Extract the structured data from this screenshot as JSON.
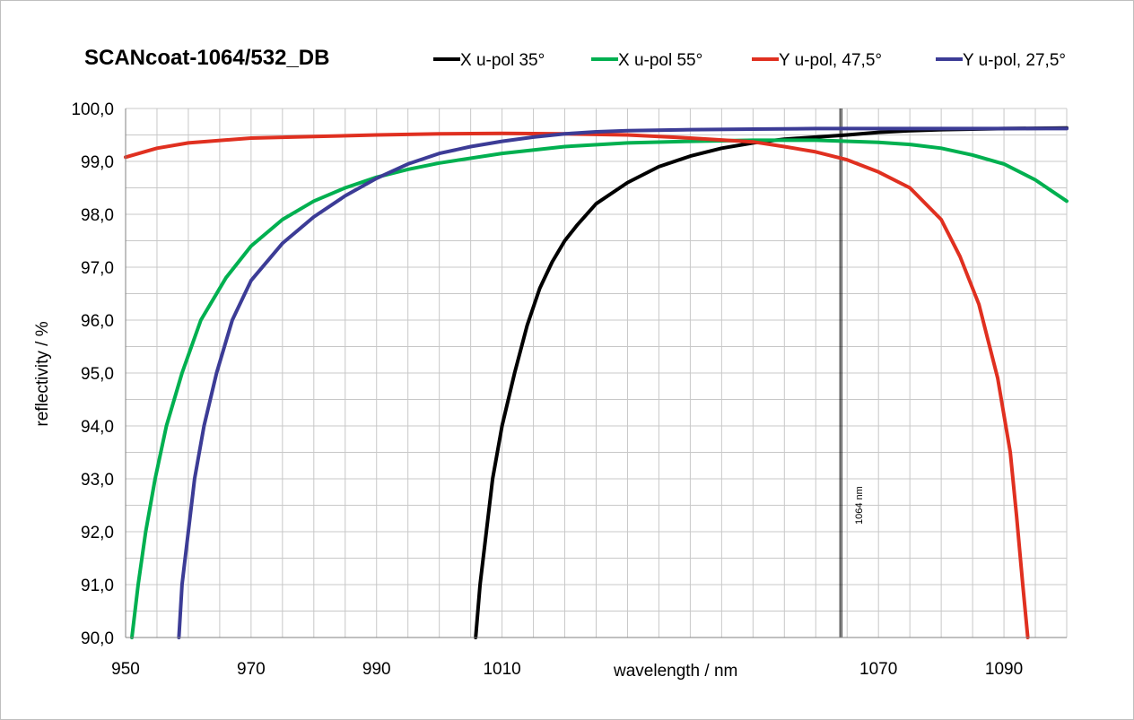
{
  "chart_data": {
    "type": "line",
    "title": "SCANcoat-1064/532_DB",
    "xlabel": "wavelength / nm",
    "ylabel": "reflectivity / %",
    "xlim": [
      950,
      1100
    ],
    "ylim": [
      90,
      100
    ],
    "x_ticks": [
      950,
      970,
      990,
      1010,
      1030,
      1050,
      1070,
      1090
    ],
    "x_tick_labels": [
      "950",
      "970",
      "990",
      "1010",
      "",
      "",
      "1070",
      "1090"
    ],
    "y_ticks": [
      90,
      91,
      92,
      93,
      94,
      95,
      96,
      97,
      98,
      99,
      100
    ],
    "y_tick_labels": [
      "90,0",
      "91,0",
      "92,0",
      "93,0",
      "94,0",
      "95,0",
      "96,0",
      "97,0",
      "98,0",
      "99,0",
      "100,0"
    ],
    "grid": true,
    "legend_position": "top",
    "marker": {
      "x": 1064,
      "label": "1064 nm"
    },
    "series": [
      {
        "name": "X u-pol 35°",
        "color": "#000000",
        "points": [
          [
            1005.8,
            90
          ],
          [
            1006.5,
            91
          ],
          [
            1007.5,
            92
          ],
          [
            1008.5,
            93
          ],
          [
            1010,
            94
          ],
          [
            1012,
            95
          ],
          [
            1014,
            95.9
          ],
          [
            1016,
            96.6
          ],
          [
            1018,
            97.1
          ],
          [
            1020,
            97.5
          ],
          [
            1022,
            97.8
          ],
          [
            1025,
            98.2
          ],
          [
            1030,
            98.6
          ],
          [
            1035,
            98.9
          ],
          [
            1040,
            99.1
          ],
          [
            1045,
            99.25
          ],
          [
            1050,
            99.35
          ],
          [
            1055,
            99.42
          ],
          [
            1060,
            99.46
          ],
          [
            1065,
            99.5
          ],
          [
            1070,
            99.55
          ],
          [
            1075,
            99.58
          ],
          [
            1080,
            99.6
          ],
          [
            1090,
            99.62
          ],
          [
            1100,
            99.63
          ]
        ]
      },
      {
        "name": "X u-pol 55°",
        "color": "#00b050",
        "points": [
          [
            951,
            90
          ],
          [
            952,
            91
          ],
          [
            953.2,
            92
          ],
          [
            954.7,
            93
          ],
          [
            956.5,
            94
          ],
          [
            959,
            95
          ],
          [
            962,
            96
          ],
          [
            966,
            96.8
          ],
          [
            970,
            97.4
          ],
          [
            975,
            97.9
          ],
          [
            980,
            98.25
          ],
          [
            985,
            98.5
          ],
          [
            990,
            98.7
          ],
          [
            995,
            98.85
          ],
          [
            1000,
            98.97
          ],
          [
            1010,
            99.15
          ],
          [
            1020,
            99.28
          ],
          [
            1030,
            99.35
          ],
          [
            1040,
            99.38
          ],
          [
            1050,
            99.4
          ],
          [
            1060,
            99.4
          ],
          [
            1070,
            99.36
          ],
          [
            1075,
            99.32
          ],
          [
            1080,
            99.25
          ],
          [
            1085,
            99.12
          ],
          [
            1090,
            98.95
          ],
          [
            1095,
            98.65
          ],
          [
            1100,
            98.25
          ]
        ]
      },
      {
        "name": "Y u-pol, 47,5°",
        "color": "#e03020",
        "points": [
          [
            950,
            99.08
          ],
          [
            955,
            99.25
          ],
          [
            960,
            99.35
          ],
          [
            970,
            99.44
          ],
          [
            980,
            99.47
          ],
          [
            990,
            99.5
          ],
          [
            1000,
            99.52
          ],
          [
            1010,
            99.53
          ],
          [
            1020,
            99.52
          ],
          [
            1030,
            99.5
          ],
          [
            1040,
            99.44
          ],
          [
            1050,
            99.37
          ],
          [
            1055,
            99.28
          ],
          [
            1060,
            99.18
          ],
          [
            1065,
            99.03
          ],
          [
            1070,
            98.8
          ],
          [
            1075,
            98.5
          ],
          [
            1080,
            97.9
          ],
          [
            1083,
            97.2
          ],
          [
            1086,
            96.3
          ],
          [
            1089,
            94.9
          ],
          [
            1091,
            93.5
          ],
          [
            1092,
            92.3
          ],
          [
            1093,
            91
          ],
          [
            1093.8,
            90
          ]
        ]
      },
      {
        "name": "Y u-pol, 27,5°",
        "color": "#3c3c96",
        "points": [
          [
            958.5,
            90
          ],
          [
            959,
            91
          ],
          [
            960,
            92
          ],
          [
            961,
            93
          ],
          [
            962.5,
            94
          ],
          [
            964.5,
            95
          ],
          [
            967,
            96
          ],
          [
            970,
            96.75
          ],
          [
            975,
            97.45
          ],
          [
            980,
            97.95
          ],
          [
            985,
            98.35
          ],
          [
            990,
            98.68
          ],
          [
            995,
            98.95
          ],
          [
            1000,
            99.15
          ],
          [
            1005,
            99.28
          ],
          [
            1010,
            99.38
          ],
          [
            1015,
            99.46
          ],
          [
            1020,
            99.52
          ],
          [
            1025,
            99.56
          ],
          [
            1030,
            99.58
          ],
          [
            1040,
            99.6
          ],
          [
            1050,
            99.61
          ],
          [
            1060,
            99.62
          ],
          [
            1070,
            99.62
          ],
          [
            1080,
            99.62
          ],
          [
            1090,
            99.62
          ],
          [
            1100,
            99.62
          ]
        ]
      }
    ]
  }
}
